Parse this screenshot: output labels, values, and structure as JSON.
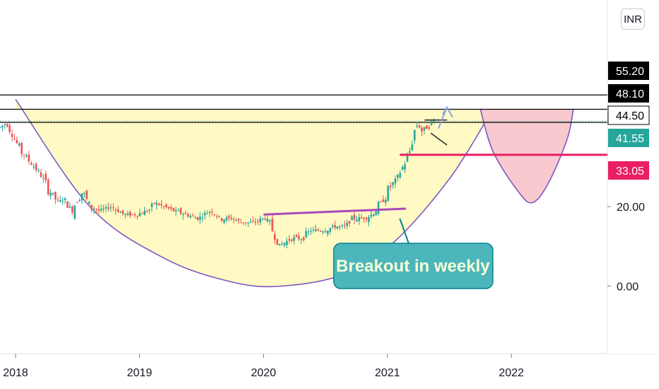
{
  "currency": "INR",
  "annotation": "Breakout in weekly",
  "colors": {
    "up": "#26a69a",
    "down": "#ef5350",
    "cup_fill": "#fff9c4",
    "cup_stroke": "#7e57c2",
    "handle_fill": "#f8c9cf",
    "breakout_line": "#ab47bc",
    "support_line": "#e91e63",
    "callout_fill": "#4db6bc",
    "callout_border": "#00838f",
    "current_price": "#26a69a"
  },
  "chart_data": {
    "type": "candlestick",
    "x_axis": {
      "tick_labels": [
        "2018",
        "2019",
        "2020",
        "2021",
        "2022"
      ],
      "range": [
        2018.0,
        2022.9
      ]
    },
    "y_axis": {
      "tick_labels": [
        "20.00",
        "0.00"
      ],
      "range": [
        -17.0,
        72.0
      ],
      "position": "right"
    },
    "price_tags": [
      {
        "label": "55.20",
        "value": 55.2,
        "style": "black"
      },
      {
        "label": "48.10",
        "value": 48.1,
        "style": "black"
      },
      {
        "label": "44.50",
        "value": 44.5,
        "style": "outline"
      },
      {
        "label": "41.55",
        "value": 41.55,
        "style": "current"
      },
      {
        "label": "33.05",
        "value": 33.05,
        "style": "red"
      }
    ],
    "horizontal_levels": [
      48.1,
      44.5,
      41.55,
      33.05
    ],
    "price_series": [
      [
        2018.0,
        40
      ],
      [
        2018.05,
        41
      ],
      [
        2018.1,
        38
      ],
      [
        2018.17,
        34
      ],
      [
        2018.25,
        31
      ],
      [
        2018.33,
        28
      ],
      [
        2018.4,
        24
      ],
      [
        2018.47,
        21
      ],
      [
        2018.52,
        22
      ],
      [
        2018.58,
        19
      ],
      [
        2018.62,
        22
      ],
      [
        2018.67,
        24
      ],
      [
        2018.72,
        20
      ],
      [
        2018.8,
        19
      ],
      [
        2018.9,
        20
      ],
      [
        2019.0,
        18
      ],
      [
        2019.1,
        18
      ],
      [
        2019.2,
        19
      ],
      [
        2019.25,
        21
      ],
      [
        2019.32,
        20
      ],
      [
        2019.4,
        19
      ],
      [
        2019.5,
        18
      ],
      [
        2019.6,
        17
      ],
      [
        2019.65,
        18
      ],
      [
        2019.7,
        19
      ],
      [
        2019.78,
        17
      ],
      [
        2019.88,
        17
      ],
      [
        2019.95,
        16
      ],
      [
        2020.05,
        16
      ],
      [
        2020.12,
        17
      ],
      [
        2020.15,
        17
      ],
      [
        2020.2,
        14
      ],
      [
        2020.25,
        10
      ],
      [
        2020.3,
        11
      ],
      [
        2020.35,
        12
      ],
      [
        2020.45,
        12
      ],
      [
        2020.5,
        14
      ],
      [
        2020.6,
        14
      ],
      [
        2020.7,
        15
      ],
      [
        2020.78,
        15
      ],
      [
        2020.85,
        17
      ],
      [
        2020.92,
        17
      ],
      [
        2021.0,
        18
      ],
      [
        2021.05,
        20
      ],
      [
        2021.1,
        22
      ],
      [
        2021.15,
        25
      ],
      [
        2021.2,
        27
      ],
      [
        2021.25,
        30
      ],
      [
        2021.3,
        33
      ],
      [
        2021.33,
        38
      ],
      [
        2021.37,
        41
      ],
      [
        2021.4,
        39
      ],
      [
        2021.45,
        40
      ],
      [
        2021.5,
        41.5
      ]
    ],
    "cup_curve_points": [
      [
        2018.0,
        47
      ],
      [
        2018.6,
        20
      ],
      [
        2019.2,
        7
      ],
      [
        2019.75,
        1
      ],
      [
        2020.15,
        0
      ],
      [
        2020.65,
        3
      ],
      [
        2021.05,
        11
      ],
      [
        2021.5,
        27
      ],
      [
        2021.85,
        44.5
      ]
    ],
    "handle_curve_points": [
      [
        2021.75,
        44.5
      ],
      [
        2021.85,
        34
      ],
      [
        2022.05,
        24
      ],
      [
        2022.17,
        21
      ],
      [
        2022.3,
        26
      ],
      [
        2022.45,
        37
      ],
      [
        2022.5,
        44.5
      ]
    ],
    "breakout_line": {
      "from": [
        2020.0,
        18
      ],
      "to": [
        2021.15,
        19.5
      ]
    },
    "support_line": {
      "from": [
        2021.1,
        33.05
      ],
      "to": [
        2021.6,
        33.05
      ]
    },
    "flag": {
      "x": [
        2021.3,
        2021.48
      ],
      "top": 41.8,
      "bottom": 36.5
    },
    "arrow": {
      "at": [
        2021.48,
        45
      ]
    },
    "callout": {
      "anchor": [
        2021.1,
        17
      ]
    }
  }
}
